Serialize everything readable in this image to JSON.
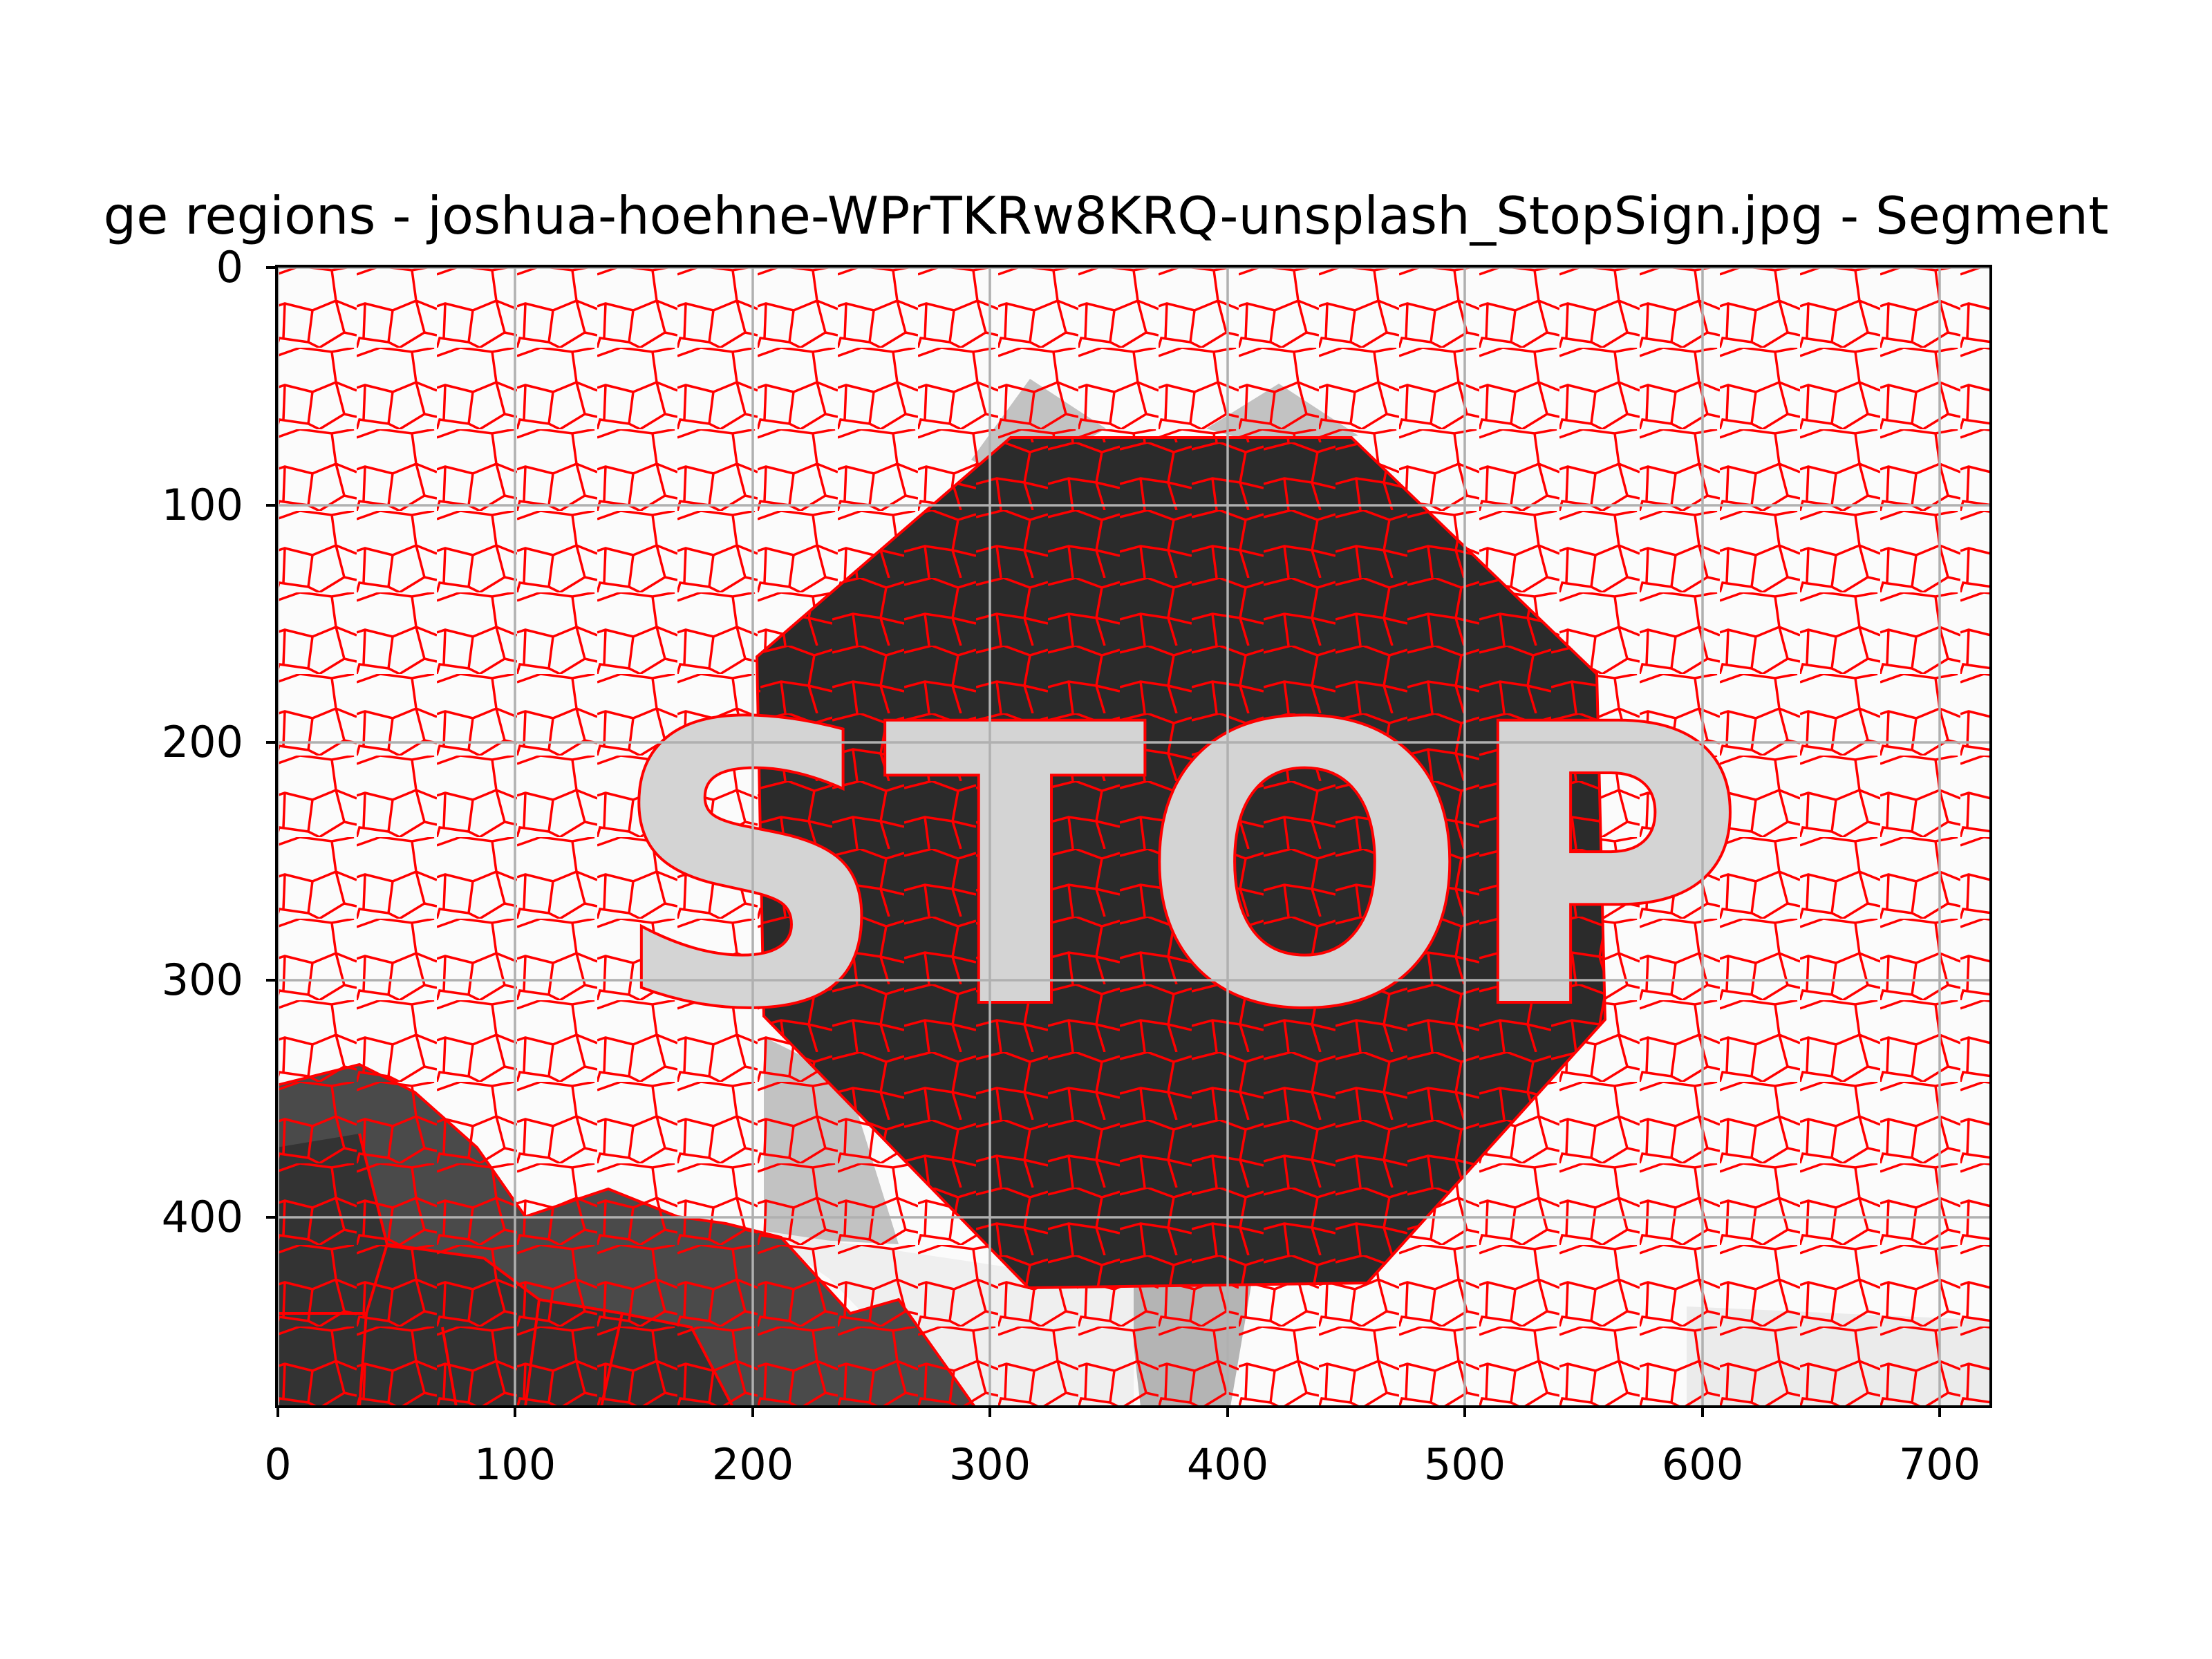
{
  "figure": {
    "title": "ge regions - joshua-hoehne-WPrTKRw8KRQ-unsplash_StopSign.jpg - Segment",
    "x_ticks": [
      "0",
      "100",
      "200",
      "300",
      "400",
      "500",
      "600",
      "700"
    ],
    "y_ticks": [
      "0",
      "100",
      "200",
      "300",
      "400"
    ],
    "grid": true,
    "boundary_color": "#ff0000",
    "image_colors": {
      "background": "#fbfbfb",
      "sign": "#2b2b2b",
      "letters": "#d4d4d4",
      "mid_gray": "#bdbdbd",
      "dark_gray": "#454545"
    },
    "sign_text": "STOP"
  },
  "chart_data": {
    "type": "image",
    "x_axis": {
      "range": [
        0,
        720
      ],
      "ticks": [
        0,
        100,
        200,
        300,
        400,
        500,
        600,
        700
      ]
    },
    "y_axis": {
      "range": [
        480,
        0
      ],
      "inverted": true,
      "ticks": [
        0,
        100,
        200,
        300,
        400
      ]
    },
    "grid": true
  }
}
